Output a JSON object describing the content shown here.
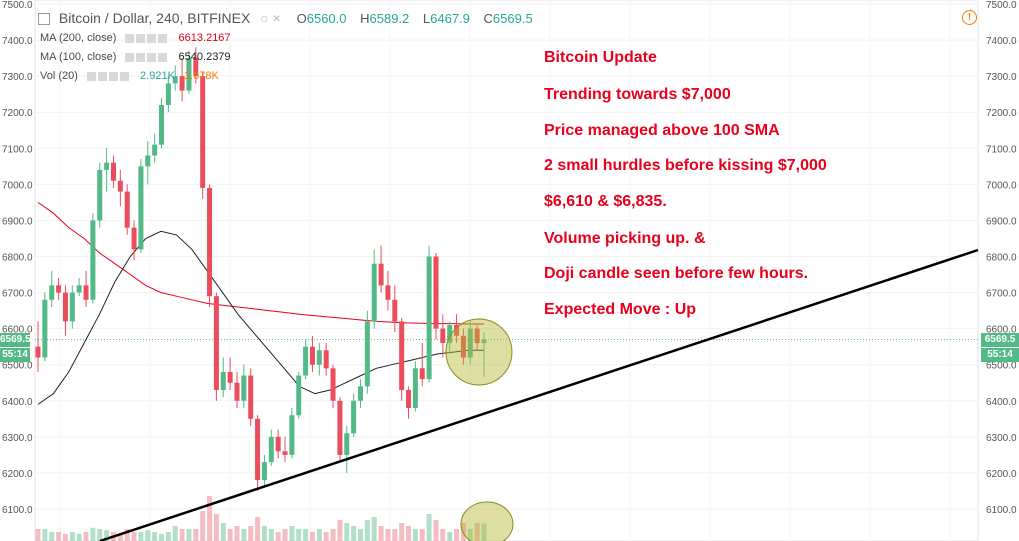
{
  "header": {
    "title": "Bitcoin / Dollar, 240, BITFINEX",
    "ohlc": [
      {
        "key": "O",
        "value": "6560.0"
      },
      {
        "key": "H",
        "value": "6589.2"
      },
      {
        "key": "L",
        "value": "6467.9"
      },
      {
        "key": "C",
        "value": "6569.5"
      }
    ]
  },
  "indicators": [
    {
      "label": "MA (200, close)",
      "value": "6613.2167",
      "color": "#e8001c"
    },
    {
      "label": "MA (100, close)",
      "value": "6540.2379",
      "color": "#222222"
    },
    {
      "label": "Vol (20)",
      "value": "2.921K",
      "value2": "1.678K",
      "color": "#26a69a",
      "color2": "#f57c00"
    }
  ],
  "price_tag": "6569.5",
  "countdown": "55:14",
  "annotations": [
    "Bitcoin Update",
    "Trending towards $7,000",
    "Price managed above 100 SMA",
    "2 small hurdles before kissing $7,000",
    "$6,610 & $6,835.",
    "Volume picking up. &",
    "Doji candle seen before few hours.",
    "Expected Move : Up"
  ],
  "colors": {
    "up": "#53b987",
    "down": "#eb4d5c",
    "ma200": "#e8001c",
    "ma100": "#222222",
    "trendline": "#000000",
    "highlight": "#b5b833"
  },
  "chart_data": {
    "type": "candlestick",
    "ylim": [
      6050,
      7500
    ],
    "yticks": [
      6100,
      6200,
      6300,
      6400,
      6500,
      6600,
      6700,
      6800,
      6900,
      7000,
      7100,
      7200,
      7300,
      7400,
      7500
    ],
    "ytick_labels": [
      "6100.0",
      "6200.0",
      "6300.0",
      "6400.0",
      "6500.0",
      "6600.0",
      "6700.0",
      "6800.0",
      "6900.0",
      "7000.0",
      "7100.0",
      "7200.0",
      "7300.0",
      "7400.0",
      "7500.0"
    ],
    "candles": [
      [
        6550,
        6620,
        6480,
        6520
      ],
      [
        6520,
        6700,
        6510,
        6680
      ],
      [
        6680,
        6760,
        6660,
        6720
      ],
      [
        6720,
        6740,
        6680,
        6700
      ],
      [
        6700,
        6720,
        6580,
        6620
      ],
      [
        6620,
        6720,
        6600,
        6700
      ],
      [
        6700,
        6740,
        6690,
        6720
      ],
      [
        6720,
        6760,
        6660,
        6680
      ],
      [
        6680,
        6920,
        6670,
        6900
      ],
      [
        6900,
        7060,
        6880,
        7040
      ],
      [
        7040,
        7100,
        6980,
        7060
      ],
      [
        7060,
        7080,
        6990,
        7010
      ],
      [
        7010,
        7040,
        6940,
        6980
      ],
      [
        6980,
        7000,
        6860,
        6880
      ],
      [
        6880,
        6900,
        6790,
        6820
      ],
      [
        6820,
        7070,
        6810,
        7050
      ],
      [
        7050,
        7120,
        7000,
        7080
      ],
      [
        7080,
        7140,
        7060,
        7110
      ],
      [
        7110,
        7240,
        7100,
        7220
      ],
      [
        7220,
        7300,
        7200,
        7280
      ],
      [
        7280,
        7330,
        7260,
        7300
      ],
      [
        7300,
        7350,
        7230,
        7260
      ],
      [
        7260,
        7370,
        7250,
        7350
      ],
      [
        7350,
        7380,
        7280,
        7300
      ],
      [
        7300,
        7310,
        6960,
        6990
      ],
      [
        6990,
        7000,
        6660,
        6690
      ],
      [
        6690,
        6700,
        6400,
        6430
      ],
      [
        6430,
        6520,
        6410,
        6480
      ],
      [
        6480,
        6520,
        6430,
        6450
      ],
      [
        6450,
        6480,
        6380,
        6400
      ],
      [
        6400,
        6500,
        6380,
        6470
      ],
      [
        6470,
        6490,
        6330,
        6350
      ],
      [
        6350,
        6360,
        6150,
        6180
      ],
      [
        6180,
        6250,
        6160,
        6230
      ],
      [
        6230,
        6320,
        6220,
        6300
      ],
      [
        6300,
        6320,
        6240,
        6260
      ],
      [
        6260,
        6300,
        6230,
        6250
      ],
      [
        6250,
        6380,
        6240,
        6360
      ],
      [
        6360,
        6480,
        6350,
        6470
      ],
      [
        6470,
        6570,
        6460,
        6550
      ],
      [
        6550,
        6580,
        6480,
        6500
      ],
      [
        6500,
        6560,
        6470,
        6540
      ],
      [
        6540,
        6560,
        6470,
        6490
      ],
      [
        6490,
        6500,
        6380,
        6400
      ],
      [
        6400,
        6410,
        6230,
        6250
      ],
      [
        6250,
        6330,
        6200,
        6310
      ],
      [
        6310,
        6420,
        6300,
        6400
      ],
      [
        6400,
        6460,
        6380,
        6440
      ],
      [
        6440,
        6650,
        6420,
        6620
      ],
      [
        6620,
        6820,
        6600,
        6780
      ],
      [
        6780,
        6830,
        6700,
        6720
      ],
      [
        6720,
        6760,
        6650,
        6680
      ],
      [
        6680,
        6720,
        6590,
        6620
      ],
      [
        6620,
        6630,
        6400,
        6430
      ],
      [
        6430,
        6440,
        6350,
        6380
      ],
      [
        6380,
        6510,
        6370,
        6490
      ],
      [
        6490,
        6560,
        6440,
        6460
      ],
      [
        6460,
        6830,
        6450,
        6800
      ],
      [
        6800,
        6810,
        6570,
        6600
      ],
      [
        6600,
        6640,
        6520,
        6560
      ],
      [
        6560,
        6620,
        6530,
        6610
      ],
      [
        6610,
        6640,
        6560,
        6580
      ],
      [
        6580,
        6600,
        6500,
        6520
      ],
      [
        6520,
        6620,
        6500,
        6600
      ],
      [
        6600,
        6610,
        6540,
        6560
      ],
      [
        6560,
        6590,
        6467,
        6570
      ]
    ],
    "volume_max": 8,
    "volumes": [
      2,
      2,
      1.5,
      1.5,
      1.2,
      1.5,
      1.2,
      1.5,
      2.2,
      2,
      1.8,
      1.5,
      1.2,
      2,
      1.5,
      1.5,
      1.8,
      1.5,
      1.2,
      1.5,
      2.5,
      2,
      2,
      2,
      5,
      7.5,
      4.5,
      3,
      2,
      2.5,
      2,
      2.5,
      4,
      2.5,
      2,
      1.5,
      2,
      2.5,
      2,
      2,
      1.5,
      2,
      1.5,
      2,
      3.5,
      3,
      2.5,
      2,
      3.5,
      4,
      2.5,
      2,
      2,
      3,
      2.5,
      2,
      2,
      4.5,
      3.5,
      2,
      1.5,
      2,
      3,
      2,
      3,
      2.9
    ],
    "ma200": [
      6950,
      6920,
      6880,
      6850,
      6810,
      6780,
      6750,
      6720,
      6700,
      6690,
      6680,
      6670,
      6665,
      6660,
      6655,
      6650,
      6645,
      6640,
      6636,
      6632,
      6628,
      6624,
      6620,
      6618,
      6616,
      6615,
      6614,
      6614,
      6613,
      6613
    ],
    "ma100": [
      6390,
      6420,
      6480,
      6560,
      6640,
      6730,
      6800,
      6850,
      6870,
      6860,
      6820,
      6760,
      6700,
      6640,
      6590,
      6540,
      6490,
      6440,
      6420,
      6430,
      6450,
      6470,
      6490,
      6500,
      6510,
      6520,
      6530,
      6535,
      6540,
      6540
    ],
    "trendline": [
      [
        6030,
        6100
      ],
      [
        7500,
        6820
      ]
    ]
  }
}
